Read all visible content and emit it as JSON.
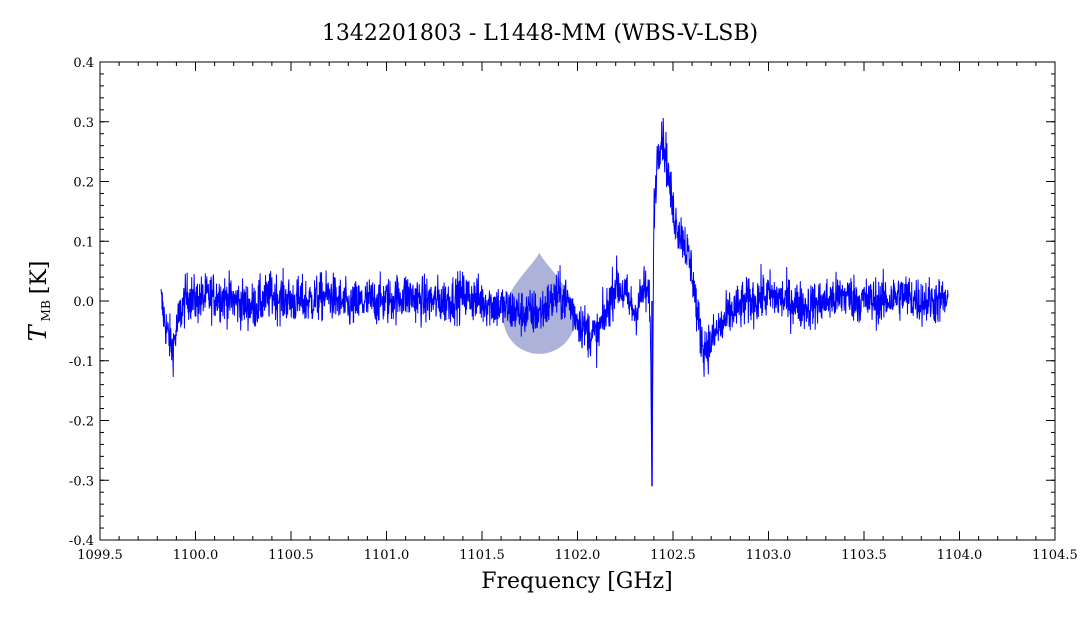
{
  "chart_data": {
    "type": "line",
    "title": "1342201803 - L1448-MM (WBS-V-LSB)",
    "xlabel": "Frequency [GHz]",
    "ylabel": {
      "main": "T",
      "sub": "MB",
      "unit": "[K]"
    },
    "xlim": [
      1099.5,
      1104.5
    ],
    "ylim": [
      -0.4,
      0.4
    ],
    "x_ticks": [
      1099.5,
      1100.0,
      1100.5,
      1101.0,
      1101.5,
      1102.0,
      1102.5,
      1103.0,
      1103.5,
      1104.0,
      1104.5
    ],
    "x_tick_labels": [
      "1099.5",
      "1100.0",
      "1100.5",
      "1101.0",
      "1101.5",
      "1102.0",
      "1102.5",
      "1103.0",
      "1103.5",
      "1104.0",
      "1104.5"
    ],
    "y_ticks": [
      -0.4,
      -0.3,
      -0.2,
      -0.1,
      0.0,
      0.1,
      0.2,
      0.3,
      0.4
    ],
    "y_tick_labels": [
      "-0.4",
      "-0.3",
      "-0.2",
      "-0.1",
      "0.0",
      "0.1",
      "0.2",
      "0.3",
      "0.4"
    ],
    "grid": false,
    "line_color": "#0000ff",
    "series": [
      {
        "x": [
          1099.82,
          1099.85,
          1099.88,
          1099.92,
          1099.96,
          1100.0,
          1100.1,
          1100.2,
          1100.3,
          1100.4,
          1100.5,
          1100.6,
          1100.7,
          1100.8,
          1100.9,
          1101.0,
          1101.1,
          1101.2,
          1101.3,
          1101.4,
          1101.5,
          1101.6,
          1101.7,
          1101.8,
          1101.9,
          1101.95,
          1102.0,
          1102.05,
          1102.1,
          1102.15,
          1102.2,
          1102.25,
          1102.3,
          1102.35,
          1102.38,
          1102.39,
          1102.4,
          1102.42,
          1102.44,
          1102.46,
          1102.48,
          1102.5,
          1102.53,
          1102.56,
          1102.6,
          1102.63,
          1102.66,
          1102.7,
          1102.73,
          1102.76,
          1102.8,
          1102.9,
          1103.0,
          1103.1,
          1103.2,
          1103.3,
          1103.4,
          1103.5,
          1103.6,
          1103.7,
          1103.8,
          1103.9,
          1103.94
        ],
        "y": [
          0.0,
          -0.05,
          -0.08,
          -0.02,
          0.01,
          0.0,
          0.01,
          0.0,
          -0.01,
          0.01,
          0.0,
          0.0,
          0.01,
          -0.01,
          0.0,
          0.0,
          0.01,
          0.0,
          0.0,
          0.01,
          0.0,
          -0.01,
          -0.02,
          -0.02,
          0.01,
          0.0,
          -0.03,
          -0.05,
          -0.06,
          -0.02,
          0.03,
          0.01,
          -0.02,
          0.02,
          0.0,
          -0.31,
          0.15,
          0.25,
          0.28,
          0.25,
          0.2,
          0.15,
          0.12,
          0.1,
          0.05,
          -0.03,
          -0.08,
          -0.07,
          -0.05,
          -0.04,
          -0.02,
          0.0,
          0.01,
          0.0,
          -0.01,
          0.0,
          0.01,
          0.0,
          0.0,
          0.01,
          0.0,
          0.0,
          0.0
        ]
      }
    ]
  },
  "annotations": [
    {
      "type": "translucent-marker",
      "x": 1101.8,
      "y": -0.045,
      "color": "#8a93c8"
    }
  ]
}
